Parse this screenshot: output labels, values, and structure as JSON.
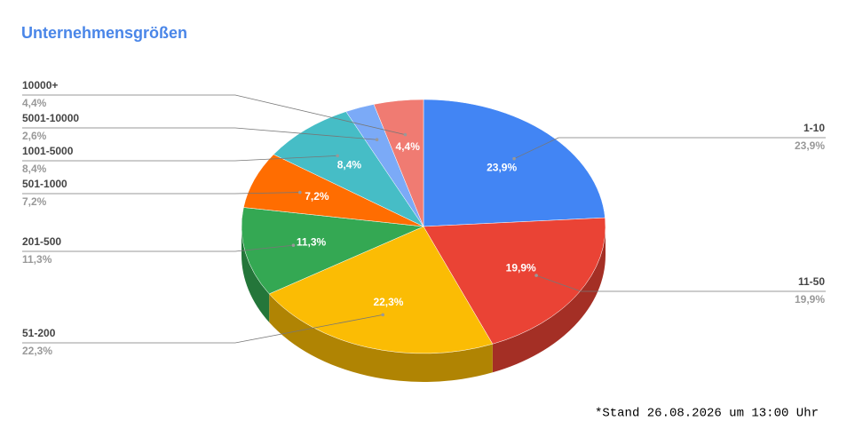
{
  "chart_data": {
    "type": "pie",
    "three_d": true,
    "title": "Unternehmensgrößen",
    "categories": [
      "1-10",
      "11-50",
      "51-200",
      "201-500",
      "501-1000",
      "1001-5000",
      "5001-10000",
      "10000+"
    ],
    "values": [
      23.9,
      19.9,
      22.3,
      11.3,
      7.2,
      8.4,
      2.6,
      4.4
    ],
    "value_labels": [
      "23,9%",
      "19,9%",
      "22,3%",
      "11,3%",
      "7,2%",
      "8,4%",
      "2,6%",
      "4,4%"
    ],
    "colors": [
      "#4285f4",
      "#ea4335",
      "#fbbc04",
      "#34a853",
      "#ff6d01",
      "#46bdc6",
      "#7baaf7",
      "#f07b72"
    ],
    "footnote": "*Stand 26.08.2026 um 13:00 Uhr"
  }
}
